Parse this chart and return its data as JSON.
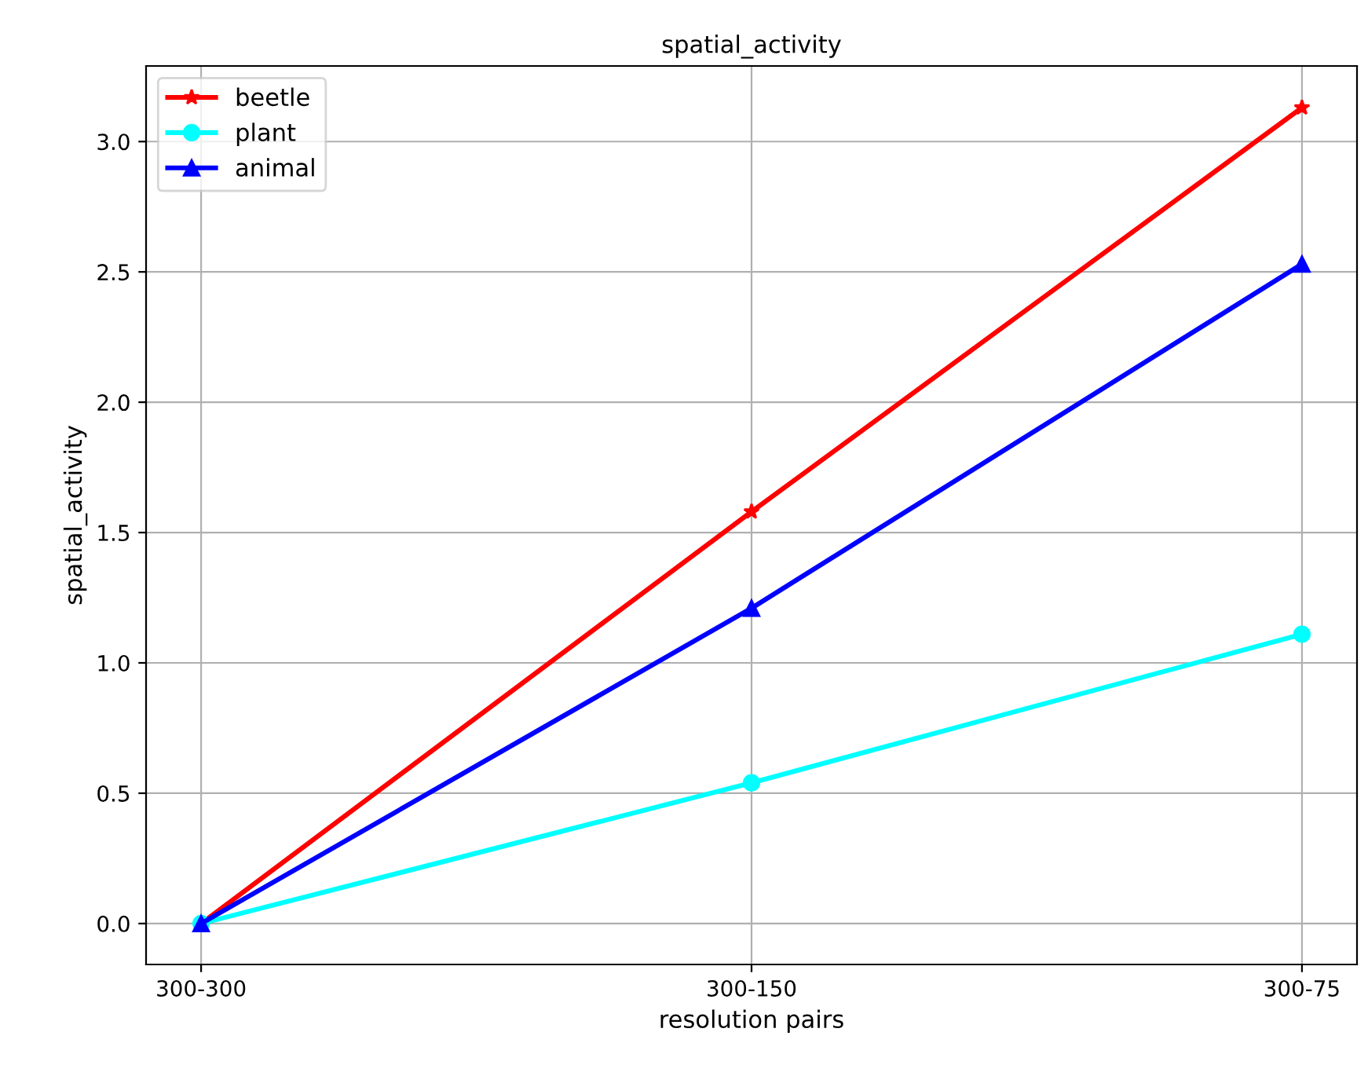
{
  "chart_data": {
    "type": "line",
    "title": "spatial_activity",
    "xlabel": "resolution pairs",
    "ylabel": "spatial_activity",
    "categories": [
      "300-300",
      "300-150",
      "300-75"
    ],
    "series": [
      {
        "name": "beetle",
        "color": "#ff0000",
        "marker": "star",
        "values": [
          0,
          1.58,
          3.13
        ]
      },
      {
        "name": "plant",
        "color": "#00ffff",
        "marker": "circle",
        "values": [
          0,
          0.54,
          1.11
        ]
      },
      {
        "name": "animal",
        "color": "#0000ff",
        "marker": "triangle",
        "values": [
          0,
          1.21,
          2.53
        ]
      }
    ],
    "ylim": [
      -0.157,
      3.29
    ],
    "yticks": [
      {
        "value": 0,
        "label": "0.0"
      },
      0.5,
      {
        "value": 1,
        "label": "1.0"
      },
      1.5,
      {
        "value": 2,
        "label": "2.0"
      },
      2.5,
      {
        "value": 3,
        "label": "3.0"
      }
    ],
    "grid": true,
    "legend": "top left",
    "line_style": "solid"
  }
}
